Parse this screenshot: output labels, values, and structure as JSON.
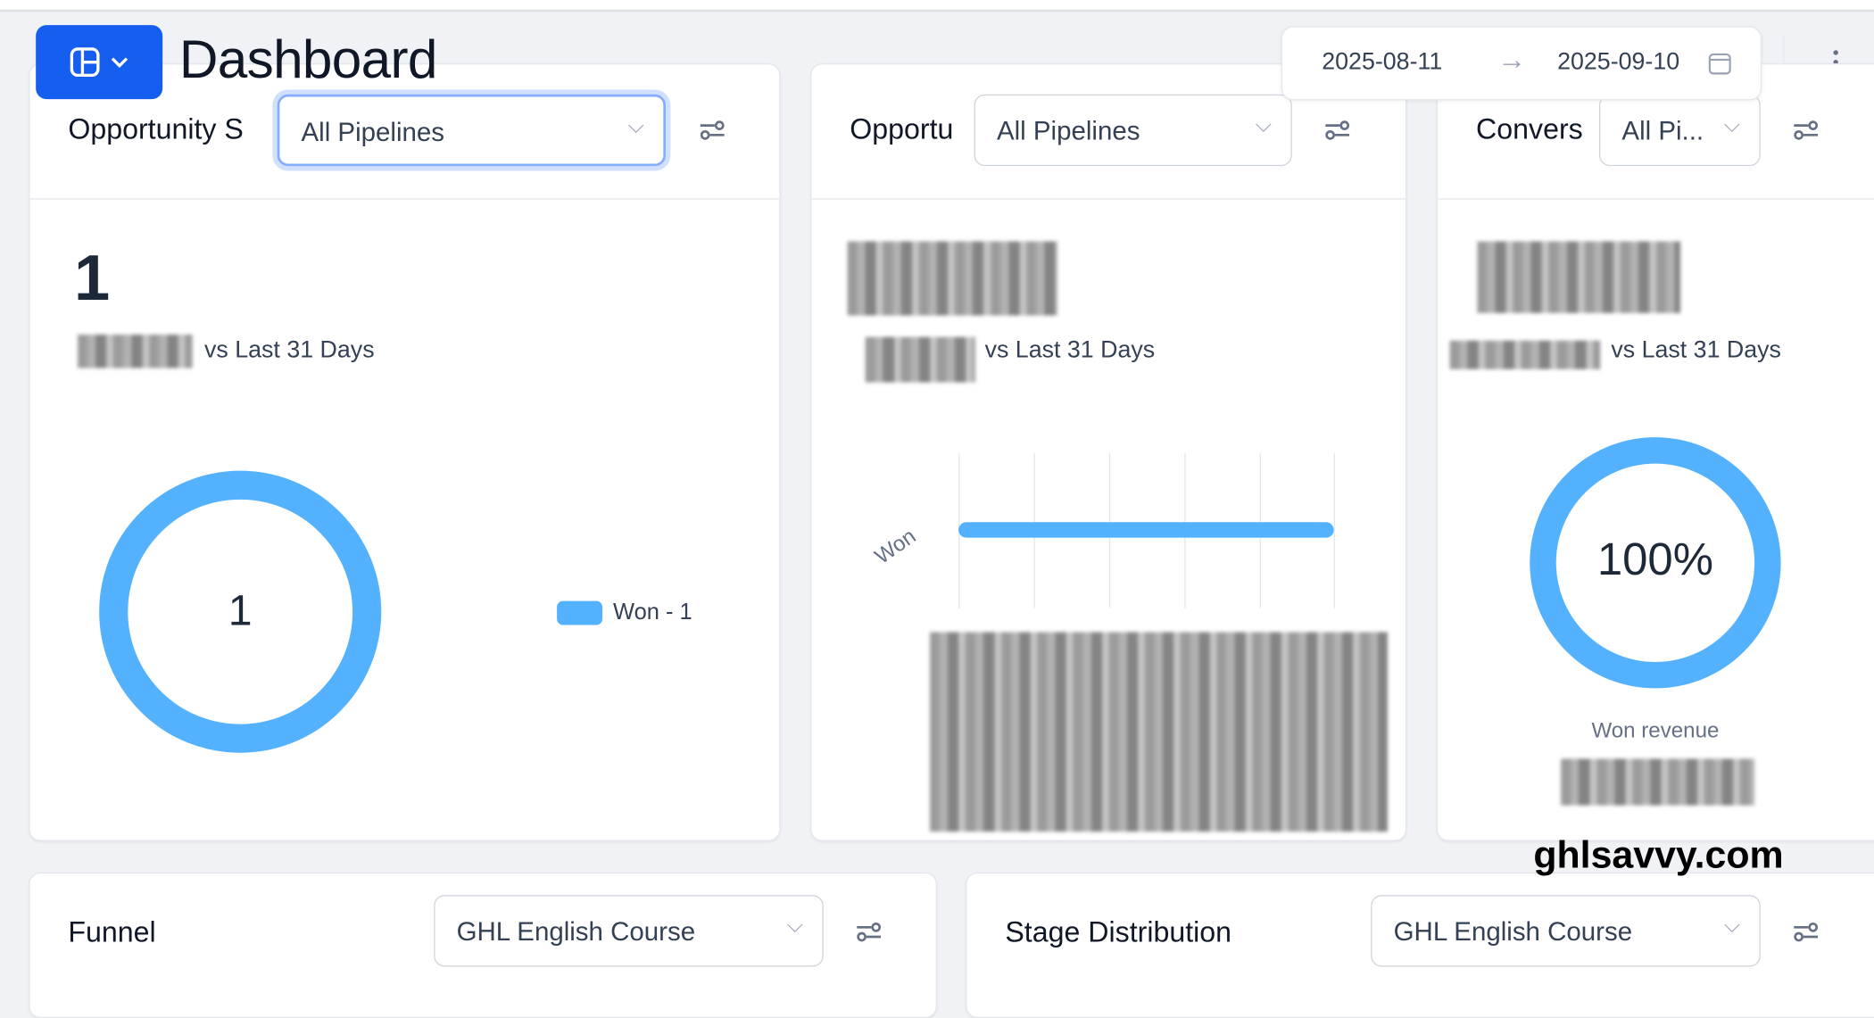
{
  "header": {
    "title": "Dashboard",
    "app_switcher_icon": "layout-icon",
    "date_start": "2025-08-11",
    "date_end": "2025-09-10",
    "more_icon": "kebab-icon"
  },
  "cards": [
    {
      "title": "Opportunity S",
      "pipeline": "All Pipelines",
      "value": "1",
      "comparison": "vs Last 31 Days",
      "chart_data": {
        "type": "pie",
        "variant": "donut",
        "center_label": "1",
        "legend": [
          {
            "label": "Won - 1",
            "value": 1,
            "color": "#53b1fd"
          }
        ],
        "legend_placement": "right"
      }
    },
    {
      "title": "Opportu",
      "pipeline": "All Pipelines",
      "comparison": "vs Last 31 Days",
      "chart_data": {
        "type": "bar",
        "orientation": "horizontal",
        "categories": [
          "Won"
        ],
        "grid": true,
        "color": "#53b1fd"
      }
    },
    {
      "title": "Convers",
      "pipeline": "All Pi...",
      "comparison": "vs Last 31 Days",
      "chart_data": {
        "type": "pie",
        "variant": "donut",
        "center_label": "100%",
        "values": [
          100
        ],
        "color": "#53b1fd"
      },
      "caption": "Won revenue"
    },
    {
      "title": "Funnel",
      "pipeline": "GHL English Course"
    },
    {
      "title": "Stage Distribution",
      "pipeline": "GHL English Course"
    }
  ],
  "watermark": "ghlsavvy.com",
  "colors": {
    "accent": "#155eef",
    "chart": "#53b1fd",
    "background": "#f0f2f5"
  }
}
